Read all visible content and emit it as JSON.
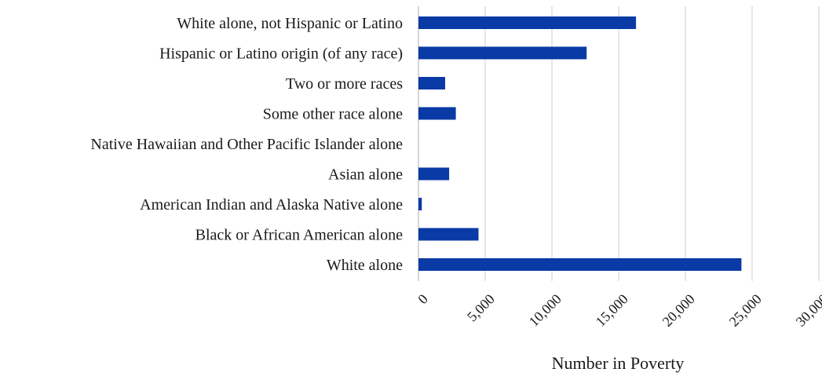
{
  "chart_data": {
    "type": "bar",
    "orientation": "horizontal",
    "title": "",
    "xlabel": "Number in Poverty",
    "ylabel": "",
    "xlim": [
      0,
      30000
    ],
    "x_ticks": [
      0,
      5000,
      10000,
      15000,
      20000,
      25000,
      30000
    ],
    "x_tick_labels": [
      "0",
      "5,000",
      "10,000",
      "15,000",
      "20,000",
      "25,000",
      "30,000"
    ],
    "grid": "vertical",
    "bar_color": "#0a3aa6",
    "categories": [
      "White alone, not Hispanic or Latino",
      "Hispanic or Latino origin (of any race)",
      "Two or more races",
      "Some other race alone",
      "Native Hawaiian and Other Pacific Islander alone",
      "Asian alone",
      "American Indian and Alaska Native alone",
      "Black or African American alone",
      "White alone"
    ],
    "values": [
      16300,
      12600,
      2000,
      2800,
      0,
      2300,
      250,
      4500,
      24200
    ]
  }
}
